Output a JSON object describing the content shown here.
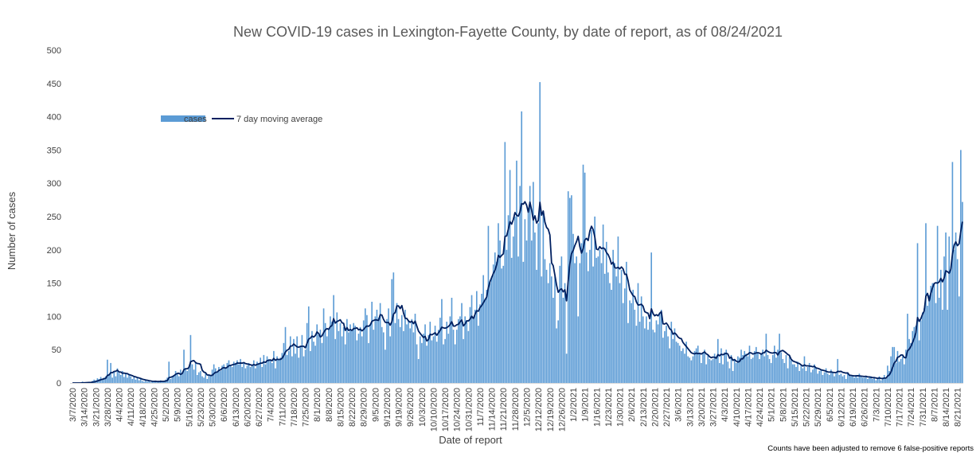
{
  "chart_data": {
    "type": "bar",
    "title": "New COVID-19 cases in Lexington-Fayette County, by date of report, as of 08/24/2021",
    "xlabel": "Date of report",
    "ylabel": "Number of cases",
    "ylim": [
      0,
      500
    ],
    "yticks": [
      "0",
      "50",
      "100",
      "150",
      "200",
      "250",
      "300",
      "350",
      "400",
      "450",
      "500"
    ],
    "grid": false,
    "legend": {
      "position": "top-left",
      "cases": "cases",
      "avg": "7 day moving average"
    },
    "footnote": "Counts have been adjusted to remove 6 false-positive reports",
    "colors": {
      "bars": "#5B9BD5",
      "line": "#002060",
      "text": "#595959"
    },
    "start_date": "2020-03-07",
    "tick_labels": [
      "3/7/2020",
      "3/14/2020",
      "3/21/2020",
      "3/28/2020",
      "4/4/2020",
      "4/11/2020",
      "4/18/2020",
      "4/25/2020",
      "5/2/2020",
      "5/9/2020",
      "5/16/2020",
      "5/23/2020",
      "5/30/2020",
      "6/6/2020",
      "6/13/2020",
      "6/20/2020",
      "6/27/2020",
      "7/4/2020",
      "7/11/2020",
      "7/18/2020",
      "7/25/2020",
      "8/1/2020",
      "8/8/2020",
      "8/15/2020",
      "8/22/2020",
      "8/29/2020",
      "9/5/2020",
      "9/12/2020",
      "9/19/2020",
      "9/26/2020",
      "10/3/2020",
      "10/10/2020",
      "10/17/2020",
      "10/24/2020",
      "10/31/2020",
      "11/7/2020",
      "11/14/2020",
      "11/21/2020",
      "11/28/2020",
      "12/5/2020",
      "12/12/2020",
      "12/19/2020",
      "12/26/2020",
      "1/2/2021",
      "1/9/2021",
      "1/16/2021",
      "1/23/2021",
      "1/30/2021",
      "2/6/2021",
      "2/13/2021",
      "2/20/2021",
      "2/27/2021",
      "3/6/2021",
      "3/13/2021",
      "3/20/2021",
      "3/27/2021",
      "4/3/2021",
      "4/10/2021",
      "4/17/2021",
      "4/24/2021",
      "5/1/2021",
      "5/8/2021",
      "5/15/2021",
      "5/22/2021",
      "5/29/2021",
      "6/5/2021",
      "6/12/2021",
      "6/19/2021",
      "6/26/2021",
      "7/3/2021",
      "7/10/2021",
      "7/17/2021",
      "7/24/2021",
      "7/31/2021",
      "8/7/2021",
      "8/14/2021",
      "8/21/2021"
    ],
    "weekly": [
      [
        0,
        0,
        0,
        0,
        0,
        0,
        2
      ],
      [
        0,
        1,
        1,
        1,
        0,
        3,
        5
      ],
      [
        4,
        7,
        6,
        9,
        5,
        8,
        10
      ],
      [
        35,
        12,
        30,
        8,
        18,
        10,
        22
      ],
      [
        15,
        12,
        18,
        9,
        14,
        8,
        12
      ],
      [
        10,
        6,
        9,
        5,
        7,
        4,
        6
      ],
      [
        3,
        2,
        4,
        2,
        3,
        1,
        3
      ],
      [
        2,
        3,
        1,
        2,
        4,
        2,
        3
      ],
      [
        5,
        8,
        32,
        6,
        10,
        12,
        18
      ],
      [
        14,
        10,
        20,
        16,
        50,
        22,
        18
      ],
      [
        25,
        72,
        28,
        20,
        30,
        12,
        16
      ],
      [
        18,
        10,
        8,
        14,
        6,
        12,
        10
      ],
      [
        20,
        28,
        22,
        16,
        24,
        18,
        26
      ],
      [
        28,
        22,
        30,
        34,
        26,
        24,
        32
      ],
      [
        30,
        34,
        28,
        36,
        24,
        30,
        22
      ],
      [
        26,
        30,
        24,
        28,
        34,
        22,
        32
      ],
      [
        30,
        38,
        24,
        42,
        28,
        40,
        36
      ],
      [
        34,
        30,
        48,
        22,
        40,
        36,
        38
      ],
      [
        45,
        60,
        84,
        42,
        48,
        70,
        40
      ],
      [
        66,
        44,
        70,
        38,
        56,
        72,
        40
      ],
      [
        50,
        90,
        115,
        48,
        78,
        62,
        56
      ],
      [
        88,
        72,
        80,
        60,
        112,
        90,
        70
      ],
      [
        80,
        100,
        92,
        132,
        66,
        106,
        78
      ],
      [
        90,
        70,
        84,
        58,
        96,
        76,
        88
      ],
      [
        80,
        90,
        86,
        64,
        74,
        84,
        70
      ],
      [
        94,
        112,
        102,
        60,
        88,
        122,
        80
      ],
      [
        100,
        110,
        98,
        120,
        84,
        76,
        50
      ],
      [
        96,
        112,
        70,
        156,
        166,
        90,
        120
      ],
      [
        96,
        84,
        102,
        78,
        110,
        88,
        94
      ],
      [
        82,
        96,
        76,
        104,
        58,
        36,
        70
      ],
      [
        60,
        74,
        88,
        56,
        72,
        92,
        64
      ],
      [
        70,
        86,
        62,
        80,
        98,
        126,
        58
      ],
      [
        66,
        92,
        74,
        100,
        128,
        80,
        58
      ],
      [
        80,
        96,
        100,
        120,
        66,
        100,
        92
      ],
      [
        78,
        114,
        132,
        96,
        110,
        138,
        86
      ],
      [
        118,
        134,
        162,
        126,
        140,
        236,
        150
      ],
      [
        160,
        178,
        196,
        182,
        240,
        214,
        172
      ],
      [
        176,
        362,
        200,
        252,
        320,
        188,
        220
      ],
      [
        250,
        334,
        190,
        296,
        408,
        182,
        246
      ],
      [
        214,
        260,
        296,
        214,
        302,
        226,
        170
      ],
      [
        240,
        452,
        160,
        258,
        186,
        170,
        150
      ],
      [
        180,
        160,
        128,
        160,
        82,
        94,
        176
      ],
      [
        190,
        128,
        150,
        44,
        288,
        278,
        282
      ],
      [
        224,
        180,
        190,
        100,
        180,
        210,
        328
      ],
      [
        316,
        196,
        168,
        200,
        230,
        175,
        250
      ],
      [
        188,
        190,
        200,
        180,
        238,
        164,
        212
      ],
      [
        166,
        150,
        140,
        200,
        180,
        160,
        220
      ],
      [
        150,
        170,
        120,
        142,
        182,
        90,
        124
      ],
      [
        120,
        140,
        110,
        86,
        150,
        92,
        130
      ],
      [
        100,
        82,
        100,
        80,
        92,
        196,
        80
      ],
      [
        76,
        94,
        88,
        106,
        110,
        68,
        78
      ],
      [
        86,
        70,
        52,
        92,
        66,
        82,
        62
      ],
      [
        60,
        56,
        48,
        52,
        44,
        62,
        40
      ],
      [
        38,
        34,
        40,
        48,
        52,
        56,
        44
      ],
      [
        30,
        46,
        50,
        28,
        42,
        36,
        34
      ],
      [
        36,
        44,
        40,
        66,
        30,
        52,
        28
      ],
      [
        46,
        50,
        32,
        22,
        42,
        18,
        36
      ],
      [
        30,
        40,
        38,
        50,
        42,
        48,
        44
      ],
      [
        40,
        56,
        36,
        38,
        48,
        54,
        46
      ],
      [
        36,
        44,
        50,
        40,
        74,
        42,
        36
      ],
      [
        30,
        42,
        56,
        38,
        50,
        74,
        46
      ],
      [
        36,
        30,
        42,
        22,
        40,
        34,
        28
      ],
      [
        28,
        24,
        32,
        18,
        26,
        22,
        40
      ],
      [
        18,
        24,
        30,
        16,
        20,
        28,
        22
      ],
      [
        14,
        18,
        20,
        12,
        16,
        22,
        14
      ],
      [
        12,
        20,
        16,
        10,
        14,
        36,
        12
      ],
      [
        14,
        10,
        12,
        6,
        16,
        12,
        10
      ],
      [
        10,
        8,
        12,
        8,
        14,
        10,
        8
      ],
      [
        8,
        10,
        6,
        8,
        10,
        6,
        8
      ],
      [
        4,
        6,
        10,
        4,
        8,
        12,
        6
      ],
      [
        26,
        18,
        40,
        54,
        54,
        30,
        48
      ],
      [
        32,
        36,
        40,
        28,
        50,
        104,
        66
      ],
      [
        60,
        78,
        84,
        86,
        210,
        64,
        94
      ],
      [
        106,
        112,
        240,
        116,
        132,
        146,
        150
      ],
      [
        150,
        120,
        236,
        128,
        170,
        110,
        190
      ],
      [
        226,
        110,
        220,
        170,
        332,
        200,
        226
      ],
      [
        186,
        130,
        350,
        272
      ]
    ]
  }
}
